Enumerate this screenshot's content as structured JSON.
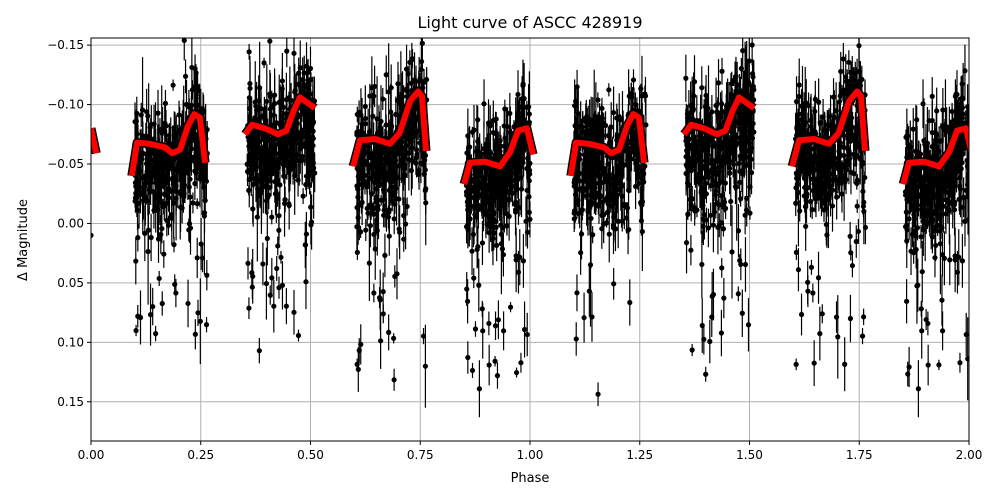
{
  "chart_data": {
    "type": "scatter",
    "title": "Light curve of ASCC 428919",
    "xlabel": "Phase",
    "ylabel": "Δ Magnitude",
    "xlim": [
      0,
      2
    ],
    "ylim": [
      0.183,
      -0.156
    ],
    "y_inverted": true,
    "grid": true,
    "xticks": [
      "0.00",
      "0.25",
      "0.50",
      "0.75",
      "1.00",
      "1.25",
      "1.50",
      "1.75",
      "2.00"
    ],
    "yticks": [
      "−0.15",
      "−0.10",
      "−0.05",
      "0.00",
      "0.05",
      "0.10",
      "0.15"
    ],
    "ytick_values": [
      -0.15,
      -0.1,
      -0.05,
      0.0,
      0.05,
      0.1,
      0.15
    ],
    "xtick_values": [
      0,
      0.25,
      0.5,
      0.75,
      1,
      1.25,
      1.5,
      1.75,
      2
    ],
    "colors": {
      "points": "#000000",
      "model": "#ff0000",
      "model_outline": "#000000",
      "grid": "#b0b0b0"
    },
    "observation_clusters": [
      {
        "phase_range": [
          0.1,
          0.265
        ],
        "model": 0
      },
      {
        "phase_range": [
          0.355,
          0.51
        ],
        "model": 1
      },
      {
        "phase_range": [
          0.605,
          0.765
        ],
        "model": 2
      },
      {
        "phase_range": [
          0.855,
          1.0
        ],
        "model": 3
      },
      {
        "phase_range": [
          1.1,
          1.265
        ],
        "model": 4
      },
      {
        "phase_range": [
          1.355,
          1.51
        ],
        "model": 5
      },
      {
        "phase_range": [
          1.605,
          1.765
        ],
        "model": 6
      },
      {
        "phase_range": [
          1.855,
          2.0
        ],
        "model": 7
      }
    ],
    "isolated_points": [
      {
        "phase": 0.0,
        "mag": 0.01
      }
    ],
    "model_segments": [
      [
        [
          0.093,
          -0.04
        ],
        [
          0.105,
          -0.068
        ],
        [
          0.134,
          -0.067
        ],
        [
          0.169,
          -0.064
        ],
        [
          0.185,
          -0.059
        ],
        [
          0.203,
          -0.062
        ],
        [
          0.221,
          -0.082
        ],
        [
          0.235,
          -0.092
        ],
        [
          0.248,
          -0.089
        ],
        [
          0.26,
          -0.051
        ]
      ],
      [
        [
          0.351,
          -0.075
        ],
        [
          0.367,
          -0.083
        ],
        [
          0.396,
          -0.08
        ],
        [
          0.426,
          -0.075
        ],
        [
          0.445,
          -0.078
        ],
        [
          0.462,
          -0.095
        ],
        [
          0.476,
          -0.106
        ],
        [
          0.51,
          -0.097
        ]
      ],
      [
        [
          0.597,
          -0.048
        ],
        [
          0.613,
          -0.07
        ],
        [
          0.647,
          -0.071
        ],
        [
          0.681,
          -0.067
        ],
        [
          0.703,
          -0.076
        ],
        [
          0.727,
          -0.103
        ],
        [
          0.745,
          -0.111
        ],
        [
          0.754,
          -0.107
        ],
        [
          0.763,
          -0.061
        ]
      ],
      [
        [
          0.85,
          -0.033
        ],
        [
          0.863,
          -0.051
        ],
        [
          0.897,
          -0.052
        ],
        [
          0.932,
          -0.048
        ],
        [
          0.955,
          -0.06
        ],
        [
          0.973,
          -0.078
        ],
        [
          0.993,
          -0.08
        ],
        [
          1.007,
          -0.058
        ]
      ],
      [
        [
          1.093,
          -0.04
        ],
        [
          1.105,
          -0.068
        ],
        [
          1.134,
          -0.067
        ],
        [
          1.169,
          -0.064
        ],
        [
          1.185,
          -0.059
        ],
        [
          1.203,
          -0.062
        ],
        [
          1.221,
          -0.082
        ],
        [
          1.235,
          -0.092
        ],
        [
          1.248,
          -0.089
        ],
        [
          1.26,
          -0.051
        ]
      ],
      [
        [
          1.351,
          -0.075
        ],
        [
          1.367,
          -0.083
        ],
        [
          1.396,
          -0.08
        ],
        [
          1.426,
          -0.075
        ],
        [
          1.445,
          -0.078
        ],
        [
          1.462,
          -0.095
        ],
        [
          1.476,
          -0.106
        ],
        [
          1.51,
          -0.097
        ]
      ],
      [
        [
          1.597,
          -0.048
        ],
        [
          1.613,
          -0.07
        ],
        [
          1.647,
          -0.071
        ],
        [
          1.681,
          -0.067
        ],
        [
          1.703,
          -0.076
        ],
        [
          1.727,
          -0.103
        ],
        [
          1.745,
          -0.111
        ],
        [
          1.754,
          -0.107
        ],
        [
          1.763,
          -0.061
        ]
      ],
      [
        [
          1.85,
          -0.033
        ],
        [
          1.863,
          -0.051
        ],
        [
          1.897,
          -0.052
        ],
        [
          1.932,
          -0.048
        ],
        [
          1.955,
          -0.06
        ],
        [
          1.973,
          -0.078
        ],
        [
          1.993,
          -0.08
        ],
        [
          2.007,
          -0.058
        ]
      ],
      [
        [
          0.0,
          -0.08
        ],
        [
          0.012,
          -0.059
        ]
      ]
    ]
  }
}
